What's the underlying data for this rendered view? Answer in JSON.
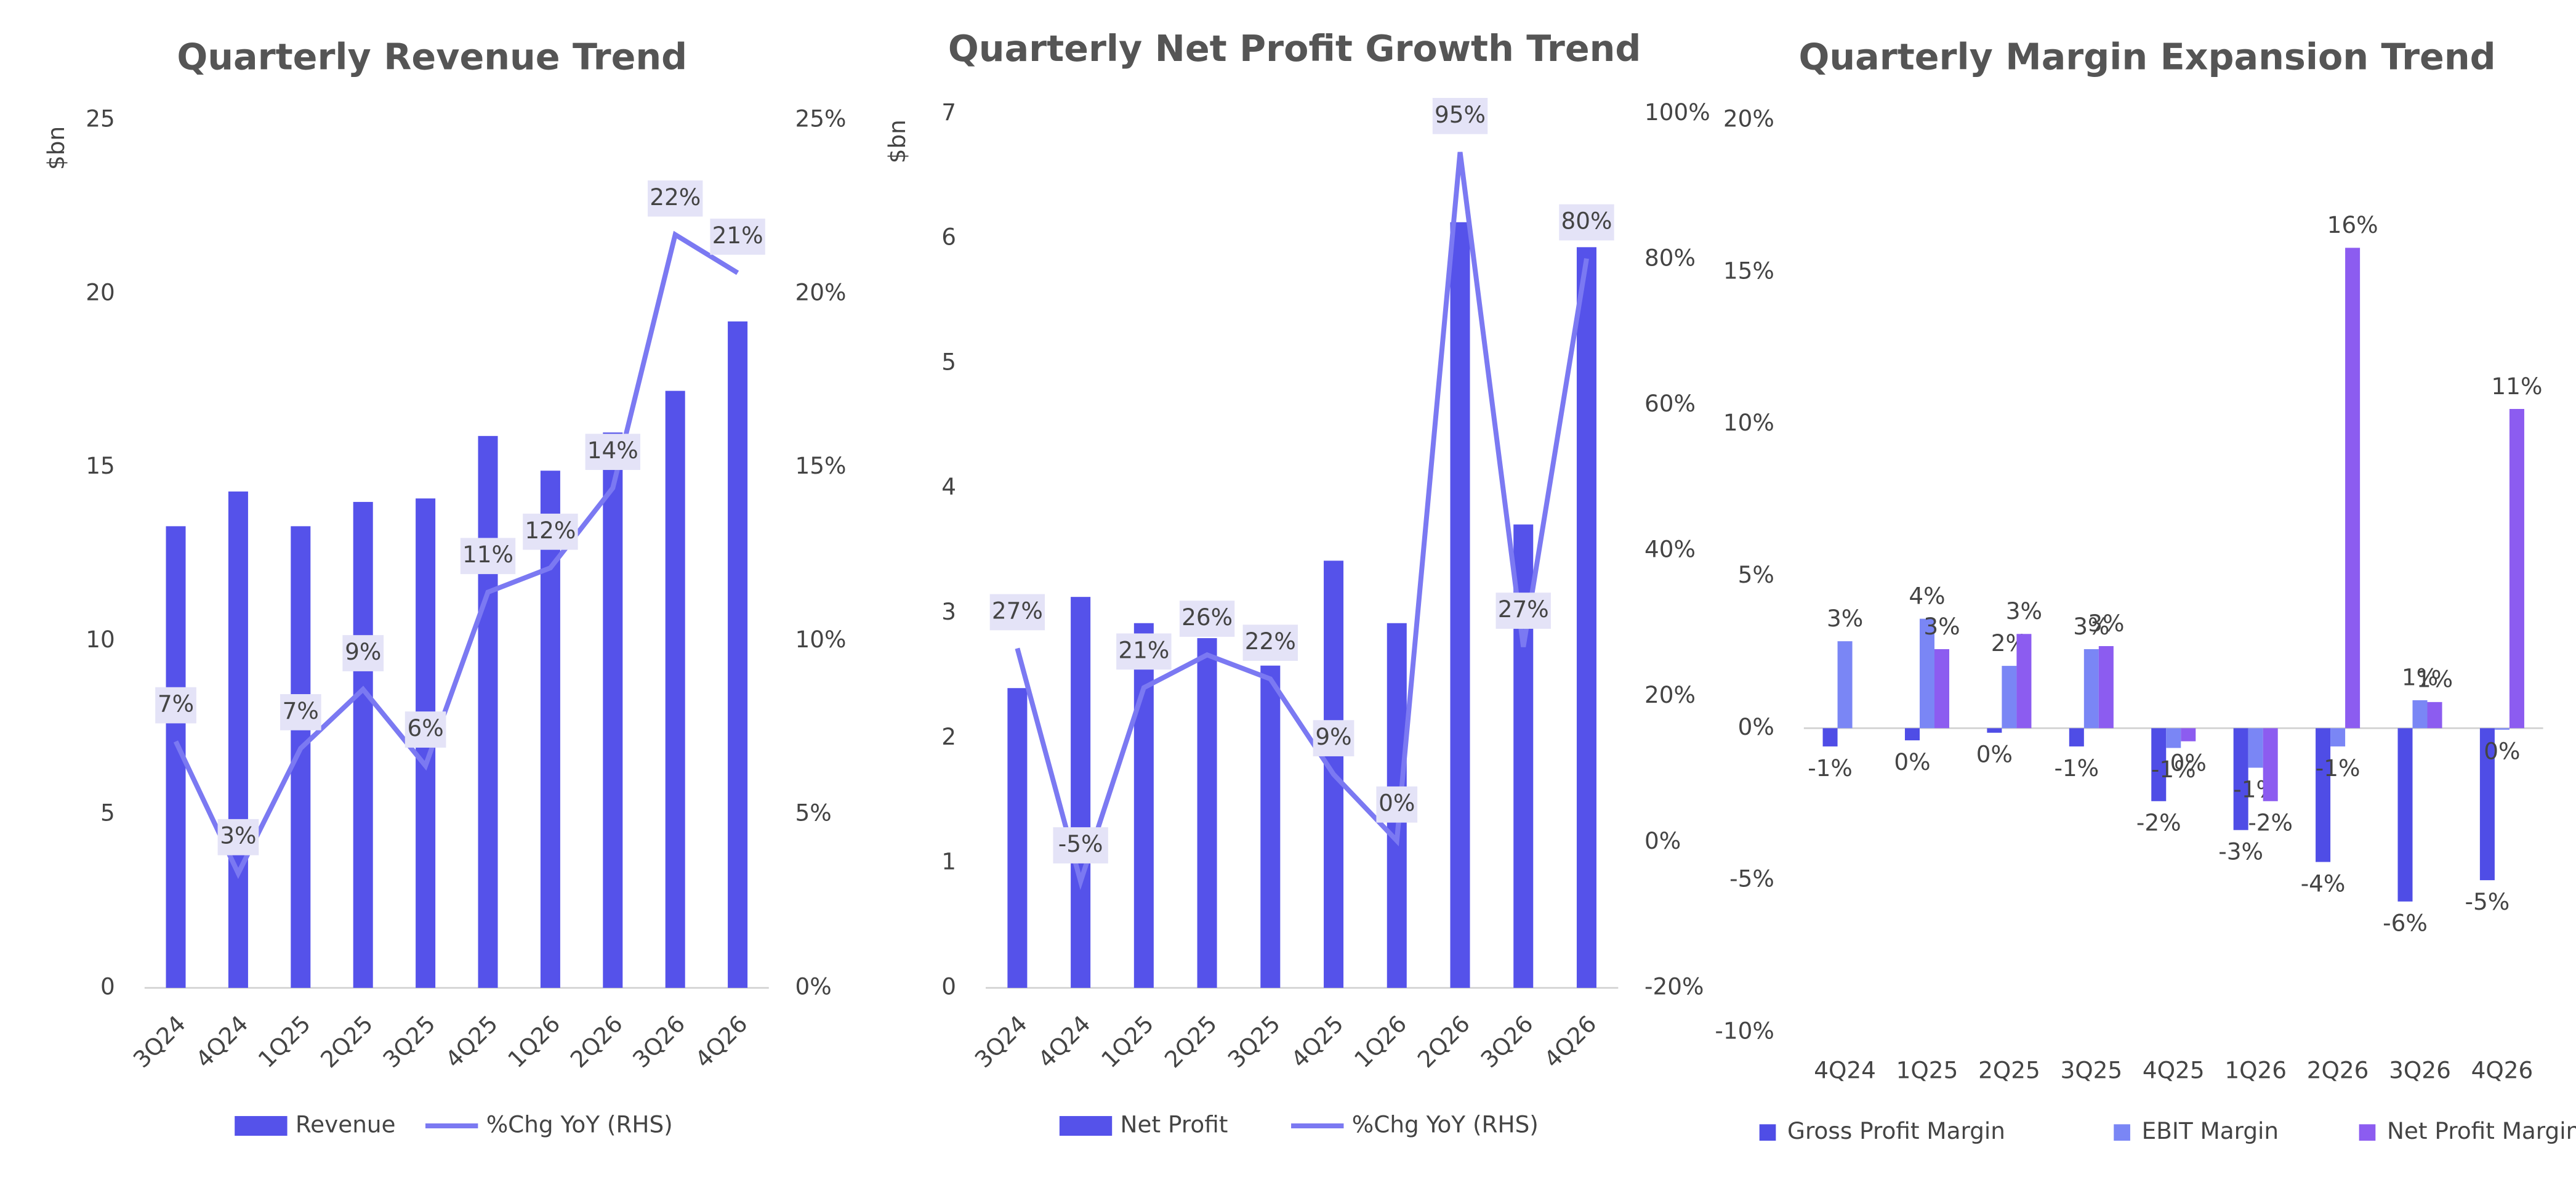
{
  "chart_data": [
    {
      "type": "bar_line",
      "title": "Quarterly Revenue Trend",
      "y_label": "$bn",
      "categories": [
        "3Q24",
        "4Q24",
        "1Q25",
        "2Q25",
        "3Q25",
        "4Q25",
        "1Q26",
        "2Q26",
        "3Q26",
        "4Q26"
      ],
      "series": [
        {
          "name": "Revenue",
          "kind": "bar",
          "color": "#5552ea",
          "values": [
            13.3,
            14.3,
            13.3,
            14.0,
            14.1,
            15.9,
            14.9,
            16.0,
            17.2,
            19.2
          ]
        },
        {
          "name": "%Chg YoY (RHS)",
          "kind": "line",
          "axis": "y2",
          "color": "#7b79f2",
          "values": [
            7.1,
            3.3,
            6.9,
            8.6,
            6.4,
            11.4,
            12.1,
            14.4,
            21.7,
            20.6
          ],
          "value_labels": [
            "7%",
            "3%",
            "7%",
            "9%",
            "6%",
            "11%",
            "12%",
            "14%",
            "22%",
            "21%"
          ]
        }
      ],
      "ylim": [
        0,
        25
      ],
      "yticks": [
        0,
        5,
        10,
        15,
        20,
        25
      ],
      "y2lim": [
        0,
        25
      ],
      "y2ticks": [
        {
          "value": 0,
          "label": "0%"
        },
        {
          "value": 5,
          "label": "5%"
        },
        {
          "value": 10,
          "label": "10%"
        },
        {
          "value": 15,
          "label": "15%"
        },
        {
          "value": 20,
          "label": "20%"
        },
        {
          "value": 25,
          "label": "25%"
        }
      ],
      "legend": "bottom"
    },
    {
      "type": "bar_line",
      "title": "Quarterly Net Profit Growth Trend",
      "y_label": "$bn",
      "categories": [
        "3Q24",
        "4Q24",
        "1Q25",
        "2Q25",
        "3Q25",
        "4Q25",
        "1Q26",
        "2Q26",
        "3Q26",
        "4Q26"
      ],
      "series": [
        {
          "name": "Net Profit",
          "kind": "bar",
          "color": "#5552ea",
          "values": [
            2.4,
            3.13,
            2.92,
            2.8,
            2.58,
            3.42,
            2.92,
            6.13,
            3.71,
            5.93
          ]
        },
        {
          "name": "%Chg YoY (RHS)",
          "kind": "line",
          "axis": "y2",
          "color": "#7b79f2",
          "values": [
            26.6,
            -5.4,
            21.2,
            25.7,
            22.4,
            9.3,
            0.2,
            94.7,
            26.8,
            80.1
          ],
          "value_labels": [
            "27%",
            "-5%",
            "21%",
            "26%",
            "22%",
            "9%",
            "0%",
            "95%",
            "27%",
            "80%"
          ]
        }
      ],
      "ylim": [
        0,
        7
      ],
      "yticks": [
        0,
        1,
        2,
        3,
        4,
        5,
        6,
        7
      ],
      "y2lim": [
        -20,
        100
      ],
      "y2ticks": [
        {
          "value": -20,
          "label": "-20%"
        },
        {
          "value": 0,
          "label": "0%"
        },
        {
          "value": 20,
          "label": "20%"
        },
        {
          "value": 40,
          "label": "40%"
        },
        {
          "value": 60,
          "label": "60%"
        },
        {
          "value": 80,
          "label": "80%"
        },
        {
          "value": 100,
          "label": "100%"
        }
      ],
      "legend": "bottom"
    },
    {
      "type": "grouped_bar",
      "title": "Quarterly Margin Expansion Trend",
      "categories": [
        "4Q24",
        "1Q25",
        "2Q25",
        "3Q25",
        "4Q25",
        "1Q26",
        "2Q26",
        "3Q26",
        "4Q26"
      ],
      "series": [
        {
          "name": "Gross Profit Margin",
          "color": "#4f4de6",
          "values": [
            -0.6,
            -0.4,
            -0.15,
            -0.6,
            -2.4,
            -3.35,
            -4.4,
            -5.7,
            -5.0
          ],
          "value_labels": [
            "-1%",
            "0%",
            "0%",
            "-1%",
            "-2%",
            "-3%",
            "-4%",
            "-6%",
            "-5%"
          ]
        },
        {
          "name": "EBIT Margin",
          "color": "#7a86f5",
          "values": [
            2.86,
            3.6,
            2.05,
            2.6,
            -0.65,
            -1.3,
            -0.6,
            0.92,
            -0.05
          ],
          "value_labels": [
            "3%",
            "4%",
            "2%",
            "3%",
            "-1%",
            "-1%",
            "-1%",
            "1%",
            "0%"
          ]
        },
        {
          "name": "Net Profit Margin",
          "color": "#8c5cf0",
          "values": [
            null,
            2.6,
            3.1,
            2.7,
            -0.43,
            -2.4,
            15.8,
            0.86,
            10.5
          ],
          "value_labels": [
            null,
            "3%",
            "3%",
            "3%",
            "0%",
            "-2%",
            "16%",
            "1%",
            "11%"
          ]
        }
      ],
      "ylim": [
        -10,
        20
      ],
      "yticks": [
        {
          "value": -10,
          "label": "-10%"
        },
        {
          "value": -5,
          "label": "-5%"
        },
        {
          "value": 0,
          "label": "0%"
        },
        {
          "value": 5,
          "label": "5%"
        },
        {
          "value": 10,
          "label": "10%"
        },
        {
          "value": 15,
          "label": "15%"
        },
        {
          "value": 20,
          "label": "20%"
        }
      ],
      "legend": "bottom"
    }
  ]
}
